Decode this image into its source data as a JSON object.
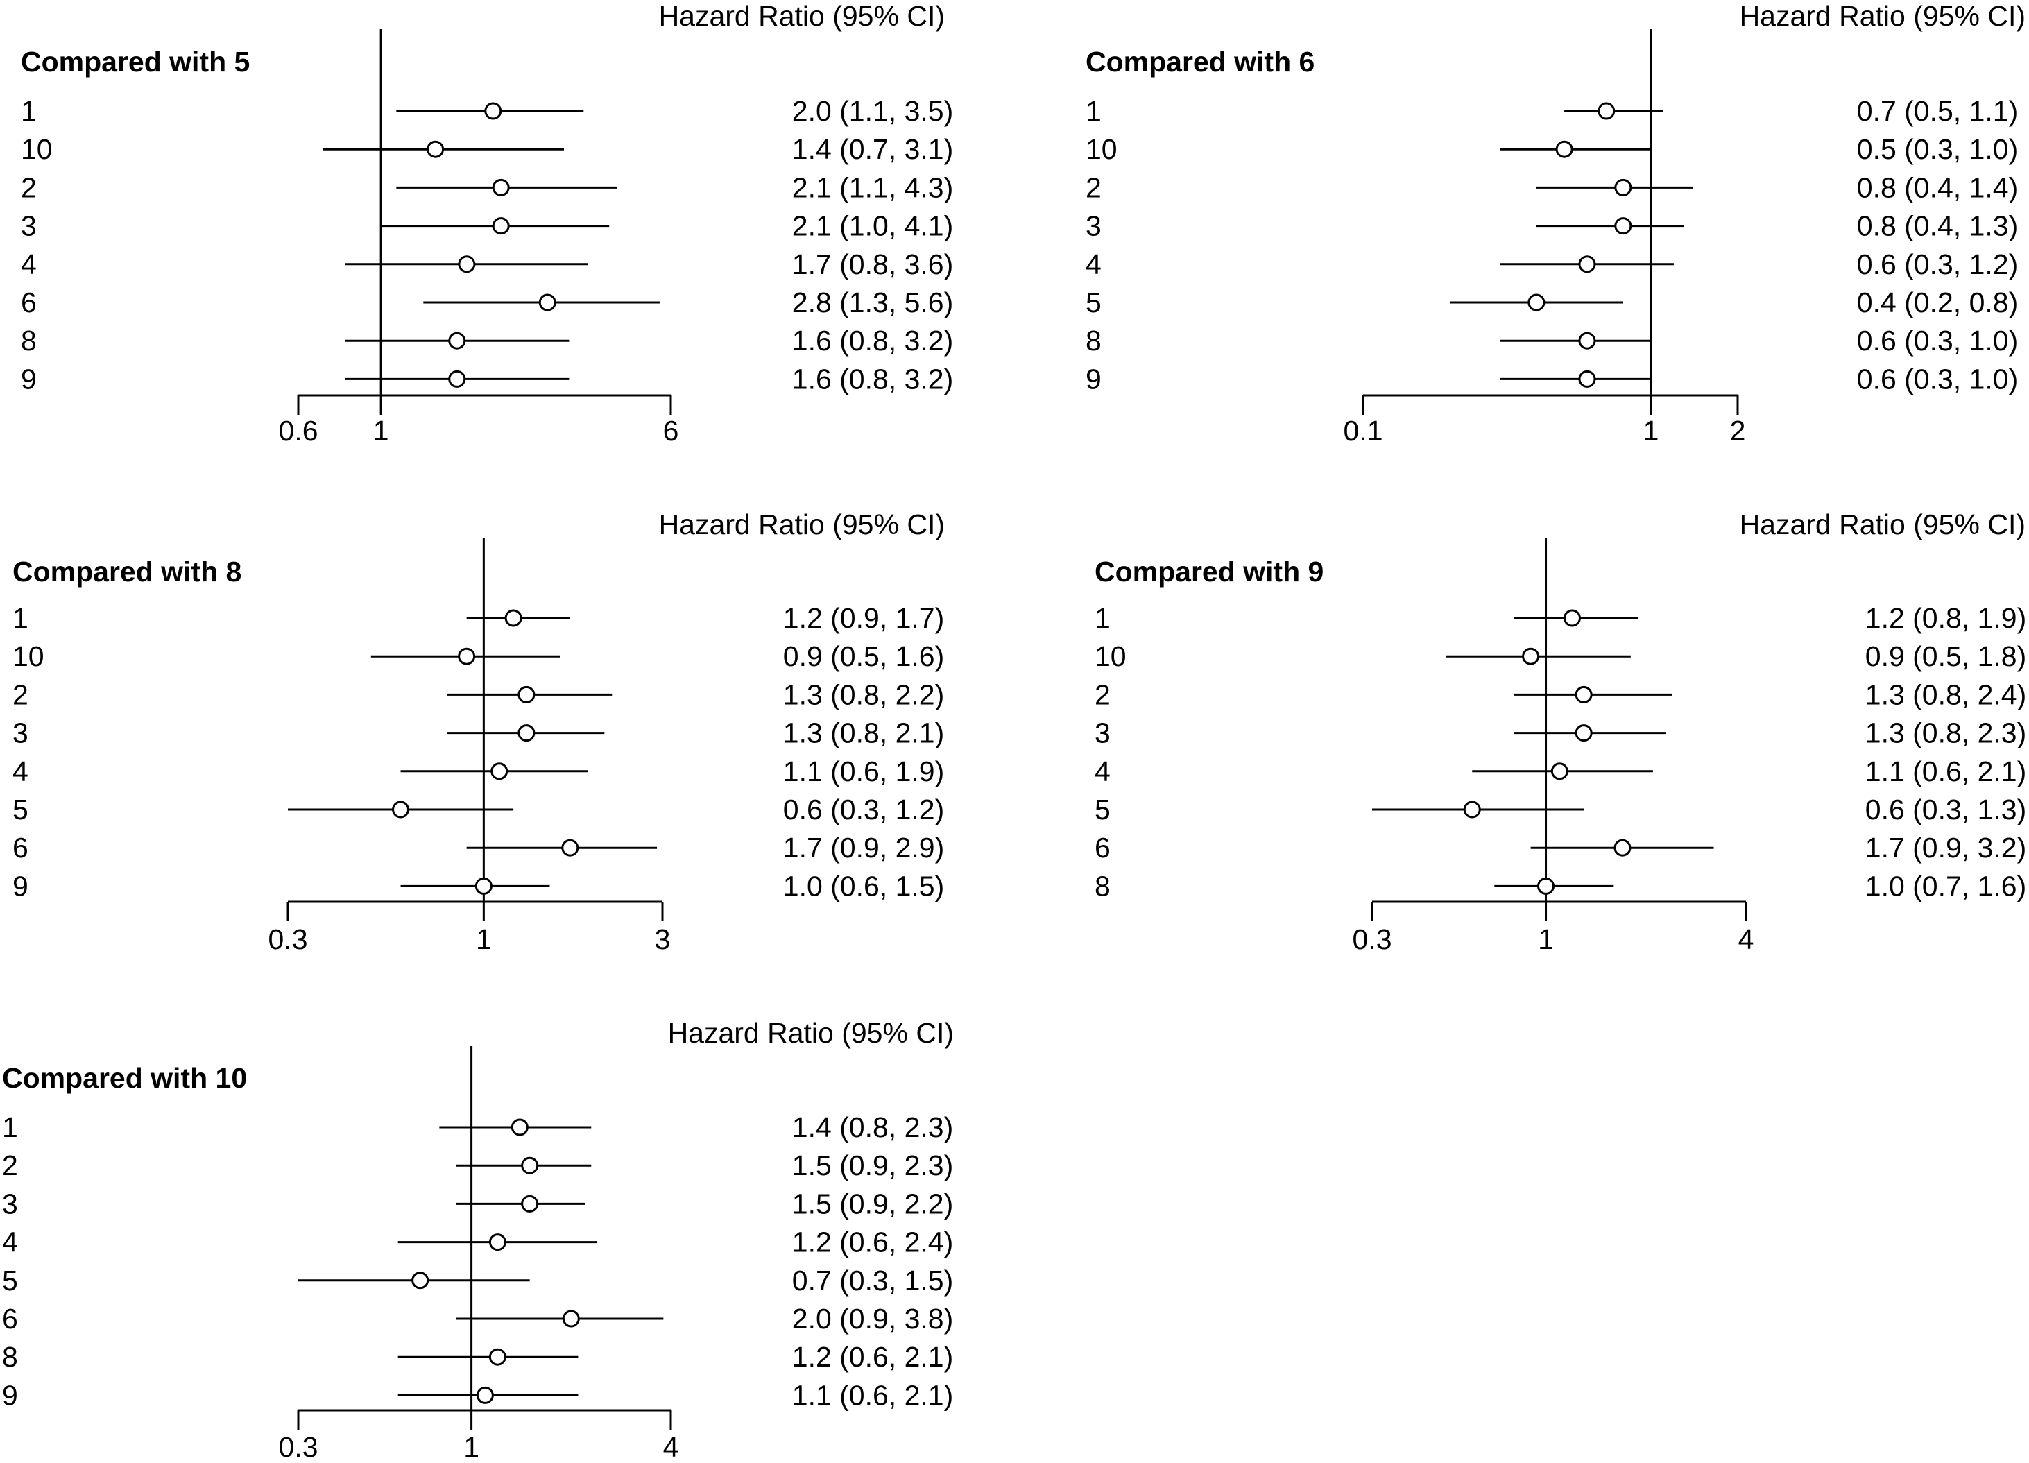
{
  "chart_data": [
    {
      "type": "forest",
      "title": "Compared with 5",
      "header": "Hazard Ratio (95% CI)",
      "scale": "log",
      "xlim": [
        0.6,
        6
      ],
      "reference": 1,
      "ticks": [
        {
          "value": 0.6,
          "label": "0.6"
        },
        {
          "value": 1,
          "label": "1"
        },
        {
          "value": 6,
          "label": "6"
        }
      ],
      "rows": [
        {
          "label": "1",
          "hr": 2.0,
          "lo": 1.1,
          "hi": 3.5,
          "text": "2.0 (1.1, 3.5)"
        },
        {
          "label": "10",
          "hr": 1.4,
          "lo": 0.7,
          "hi": 3.1,
          "text": "1.4 (0.7, 3.1)"
        },
        {
          "label": "2",
          "hr": 2.1,
          "lo": 1.1,
          "hi": 4.3,
          "text": "2.1 (1.1, 4.3)"
        },
        {
          "label": "3",
          "hr": 2.1,
          "lo": 1.0,
          "hi": 4.1,
          "text": "2.1 (1.0, 4.1)"
        },
        {
          "label": "4",
          "hr": 1.7,
          "lo": 0.8,
          "hi": 3.6,
          "text": "1.7 (0.8, 3.6)"
        },
        {
          "label": "6",
          "hr": 2.8,
          "lo": 1.3,
          "hi": 5.6,
          "text": "2.8 (1.3, 5.6)"
        },
        {
          "label": "8",
          "hr": 1.6,
          "lo": 0.8,
          "hi": 3.2,
          "text": "1.6 (0.8, 3.2)"
        },
        {
          "label": "9",
          "hr": 1.6,
          "lo": 0.8,
          "hi": 3.2,
          "text": "1.6 (0.8, 3.2)"
        }
      ]
    },
    {
      "type": "forest",
      "title": "Compared with 6",
      "header": "Hazard Ratio (95% CI)",
      "scale": "log",
      "xlim": [
        0.1,
        2
      ],
      "reference": 1,
      "ticks": [
        {
          "value": 0.1,
          "label": "0.1"
        },
        {
          "value": 1,
          "label": "1"
        },
        {
          "value": 2,
          "label": "2"
        }
      ],
      "rows": [
        {
          "label": "1",
          "hr": 0.7,
          "lo": 0.5,
          "hi": 1.1,
          "text": "0.7 (0.5, 1.1)"
        },
        {
          "label": "10",
          "hr": 0.5,
          "lo": 0.3,
          "hi": 1.0,
          "text": "0.5 (0.3, 1.0)"
        },
        {
          "label": "2",
          "hr": 0.8,
          "lo": 0.4,
          "hi": 1.4,
          "text": "0.8 (0.4, 1.4)"
        },
        {
          "label": "3",
          "hr": 0.8,
          "lo": 0.4,
          "hi": 1.3,
          "text": "0.8 (0.4, 1.3)"
        },
        {
          "label": "4",
          "hr": 0.6,
          "lo": 0.3,
          "hi": 1.2,
          "text": "0.6 (0.3, 1.2)"
        },
        {
          "label": "5",
          "hr": 0.4,
          "lo": 0.2,
          "hi": 0.8,
          "text": "0.4 (0.2, 0.8)"
        },
        {
          "label": "8",
          "hr": 0.6,
          "lo": 0.3,
          "hi": 1.0,
          "text": "0.6 (0.3, 1.0)"
        },
        {
          "label": "9",
          "hr": 0.6,
          "lo": 0.3,
          "hi": 1.0,
          "text": "0.6 (0.3, 1.0)"
        }
      ]
    },
    {
      "type": "forest",
      "title": "Compared with 8",
      "header": "Hazard Ratio (95% CI)",
      "scale": "log",
      "xlim": [
        0.3,
        3
      ],
      "reference": 1,
      "ticks": [
        {
          "value": 0.3,
          "label": "0.3"
        },
        {
          "value": 1,
          "label": "1"
        },
        {
          "value": 3,
          "label": "3"
        }
      ],
      "rows": [
        {
          "label": "1",
          "hr": 1.2,
          "lo": 0.9,
          "hi": 1.7,
          "text": "1.2 (0.9, 1.7)"
        },
        {
          "label": "10",
          "hr": 0.9,
          "lo": 0.5,
          "hi": 1.6,
          "text": "0.9 (0.5, 1.6)"
        },
        {
          "label": "2",
          "hr": 1.3,
          "lo": 0.8,
          "hi": 2.2,
          "text": "1.3 (0.8, 2.2)"
        },
        {
          "label": "3",
          "hr": 1.3,
          "lo": 0.8,
          "hi": 2.1,
          "text": "1.3 (0.8, 2.1)"
        },
        {
          "label": "4",
          "hr": 1.1,
          "lo": 0.6,
          "hi": 1.9,
          "text": "1.1 (0.6, 1.9)"
        },
        {
          "label": "5",
          "hr": 0.6,
          "lo": 0.3,
          "hi": 1.2,
          "text": "0.6 (0.3, 1.2)"
        },
        {
          "label": "6",
          "hr": 1.7,
          "lo": 0.9,
          "hi": 2.9,
          "text": "1.7 (0.9, 2.9)"
        },
        {
          "label": "9",
          "hr": 1.0,
          "lo": 0.6,
          "hi": 1.5,
          "text": "1.0 (0.6, 1.5)"
        }
      ]
    },
    {
      "type": "forest",
      "title": "Compared with 9",
      "header": "Hazard Ratio (95% CI)",
      "scale": "log",
      "xlim": [
        0.3,
        4
      ],
      "reference": 1,
      "ticks": [
        {
          "value": 0.3,
          "label": "0.3"
        },
        {
          "value": 1,
          "label": "1"
        },
        {
          "value": 4,
          "label": "4"
        }
      ],
      "rows": [
        {
          "label": "1",
          "hr": 1.2,
          "lo": 0.8,
          "hi": 1.9,
          "text": "1.2 (0.8, 1.9)"
        },
        {
          "label": "10",
          "hr": 0.9,
          "lo": 0.5,
          "hi": 1.8,
          "text": "0.9 (0.5, 1.8)"
        },
        {
          "label": "2",
          "hr": 1.3,
          "lo": 0.8,
          "hi": 2.4,
          "text": "1.3 (0.8, 2.4)"
        },
        {
          "label": "3",
          "hr": 1.3,
          "lo": 0.8,
          "hi": 2.3,
          "text": "1.3 (0.8, 2.3)"
        },
        {
          "label": "4",
          "hr": 1.1,
          "lo": 0.6,
          "hi": 2.1,
          "text": "1.1 (0.6, 2.1)"
        },
        {
          "label": "5",
          "hr": 0.6,
          "lo": 0.3,
          "hi": 1.3,
          "text": "0.6 (0.3, 1.3)"
        },
        {
          "label": "6",
          "hr": 1.7,
          "lo": 0.9,
          "hi": 3.2,
          "text": "1.7 (0.9, 3.2)"
        },
        {
          "label": "8",
          "hr": 1.0,
          "lo": 0.7,
          "hi": 1.6,
          "text": "1.0 (0.7, 1.6)"
        }
      ]
    },
    {
      "type": "forest",
      "title": "Compared with 10",
      "header": "Hazard Ratio (95% CI)",
      "scale": "log",
      "xlim": [
        0.3,
        4
      ],
      "reference": 1,
      "ticks": [
        {
          "value": 0.3,
          "label": "0.3"
        },
        {
          "value": 1,
          "label": "1"
        },
        {
          "value": 4,
          "label": "4"
        }
      ],
      "rows": [
        {
          "label": "1",
          "hr": 1.4,
          "lo": 0.8,
          "hi": 2.3,
          "text": "1.4 (0.8, 2.3)"
        },
        {
          "label": "2",
          "hr": 1.5,
          "lo": 0.9,
          "hi": 2.3,
          "text": "1.5 (0.9, 2.3)"
        },
        {
          "label": "3",
          "hr": 1.5,
          "lo": 0.9,
          "hi": 2.2,
          "text": "1.5 (0.9, 2.2)"
        },
        {
          "label": "4",
          "hr": 1.2,
          "lo": 0.6,
          "hi": 2.4,
          "text": "1.2 (0.6, 2.4)"
        },
        {
          "label": "5",
          "hr": 0.7,
          "lo": 0.3,
          "hi": 1.5,
          "text": "0.7 (0.3, 1.5)"
        },
        {
          "label": "6",
          "hr": 2.0,
          "lo": 0.9,
          "hi": 3.8,
          "text": "2.0 (0.9, 3.8)"
        },
        {
          "label": "8",
          "hr": 1.2,
          "lo": 0.6,
          "hi": 2.1,
          "text": "1.2 (0.6, 2.1)"
        },
        {
          "label": "9",
          "hr": 1.1,
          "lo": 0.6,
          "hi": 2.1,
          "text": "1.1 (0.6, 2.1)"
        }
      ]
    }
  ]
}
